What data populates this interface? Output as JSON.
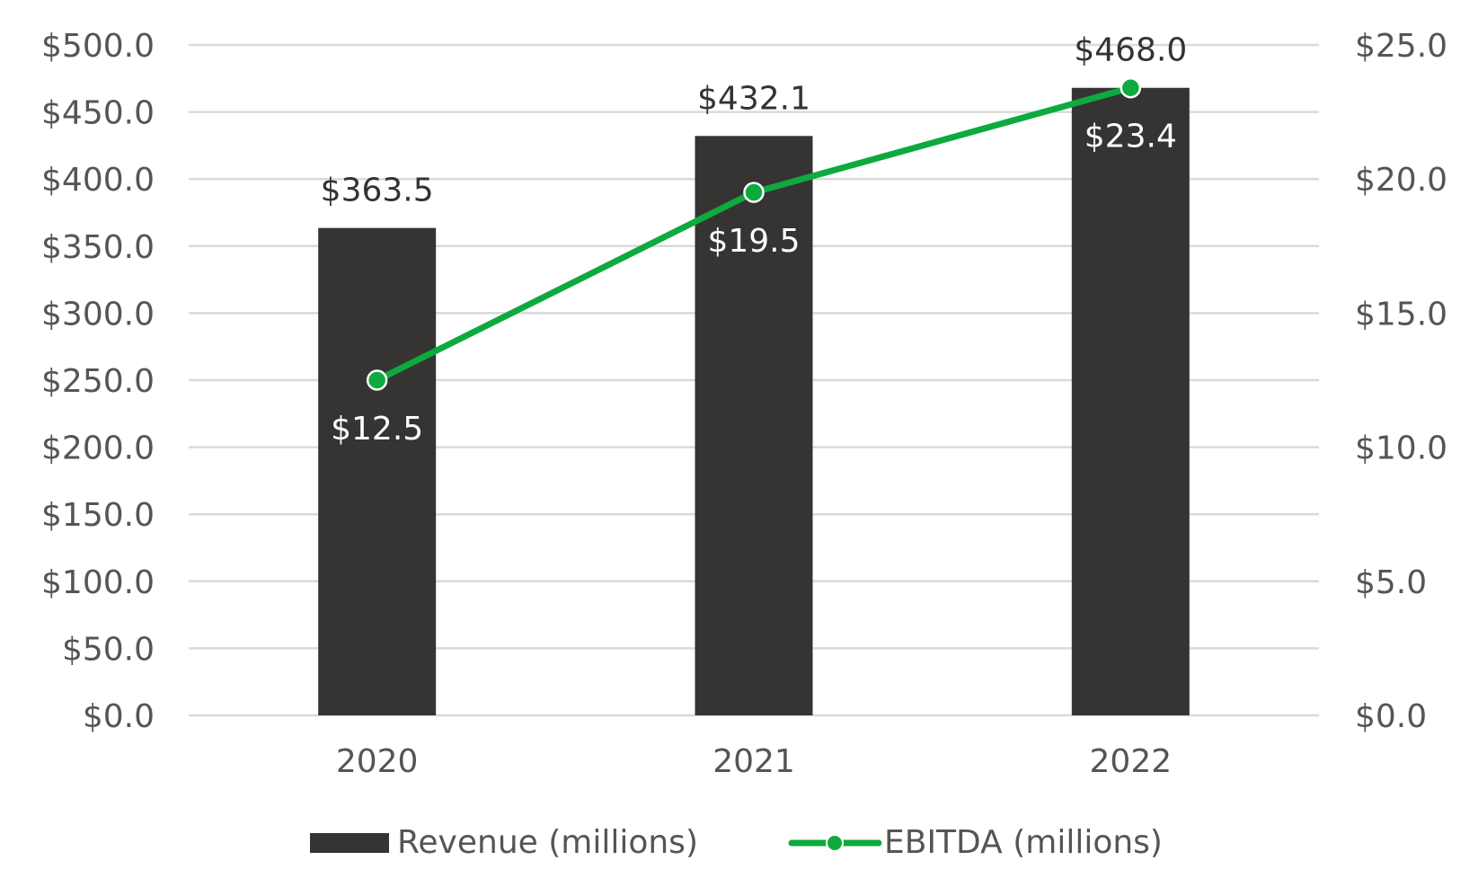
{
  "chart_data": {
    "type": "bar",
    "categories": [
      "2020",
      "2021",
      "2022"
    ],
    "series": [
      {
        "name": "Revenue (millions)",
        "type": "bar",
        "axis": "left",
        "values": [
          363.5,
          432.1,
          468.0
        ],
        "labels": [
          "$363.5",
          "$432.1",
          "$468.0"
        ],
        "color": "#353432"
      },
      {
        "name": "EBITDA (millions)",
        "type": "line",
        "axis": "right",
        "values": [
          12.5,
          19.5,
          23.4
        ],
        "labels": [
          "$12.5",
          "$19.5",
          "$23.4"
        ],
        "color": "#0daa3e"
      }
    ],
    "y_left": {
      "range": [
        0,
        500
      ],
      "ticks": [
        "$0.0",
        "$50.0",
        "$100.0",
        "$150.0",
        "$200.0",
        "$250.0",
        "$300.0",
        "$350.0",
        "$400.0",
        "$450.0",
        "$500.0"
      ]
    },
    "y_right": {
      "range": [
        0,
        25
      ],
      "ticks": [
        "$0.0",
        "$5.0",
        "$10.0",
        "$15.0",
        "$20.0",
        "$25.0"
      ]
    },
    "grid": true,
    "legend_position": "bottom"
  },
  "colors": {
    "gridline": "#d9d9d9",
    "bar": "#353432",
    "line": "#0daa3e"
  }
}
